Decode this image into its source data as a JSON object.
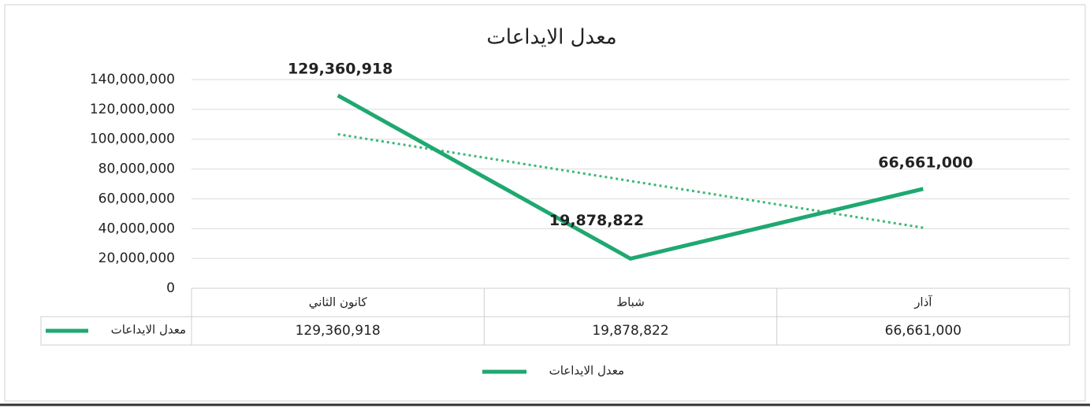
{
  "chart_data": {
    "type": "line",
    "title": "معدل الايداعات",
    "categories": [
      "كانون الثاني",
      "شباط",
      "آذار"
    ],
    "series": [
      {
        "name": "معدل الايداعات",
        "color": "#1fa870",
        "values": [
          129360918,
          19878822,
          66661000
        ],
        "value_labels": [
          "129,360,918",
          "19,878,822",
          "66,661,000"
        ]
      }
    ],
    "ylim": [
      0,
      140000000
    ],
    "yticks": [
      0,
      {
        "value": 20000000,
        "label": "20,000,000"
      },
      {
        "value": 40000000,
        "label": "40,000,000"
      },
      {
        "value": 60000000,
        "label": "60,000,000"
      },
      {
        "value": 80000000,
        "label": "80,000,000"
      },
      {
        "value": 100000000,
        "label": "100,000,000"
      },
      {
        "value": 120000000,
        "label": "120,000,000"
      },
      {
        "value": 140000000,
        "label": "140,000,000"
      }
    ],
    "grid": true,
    "trendline": "linear",
    "trendline_color": "#3cb878",
    "data_table": true,
    "legend": "bottom"
  }
}
